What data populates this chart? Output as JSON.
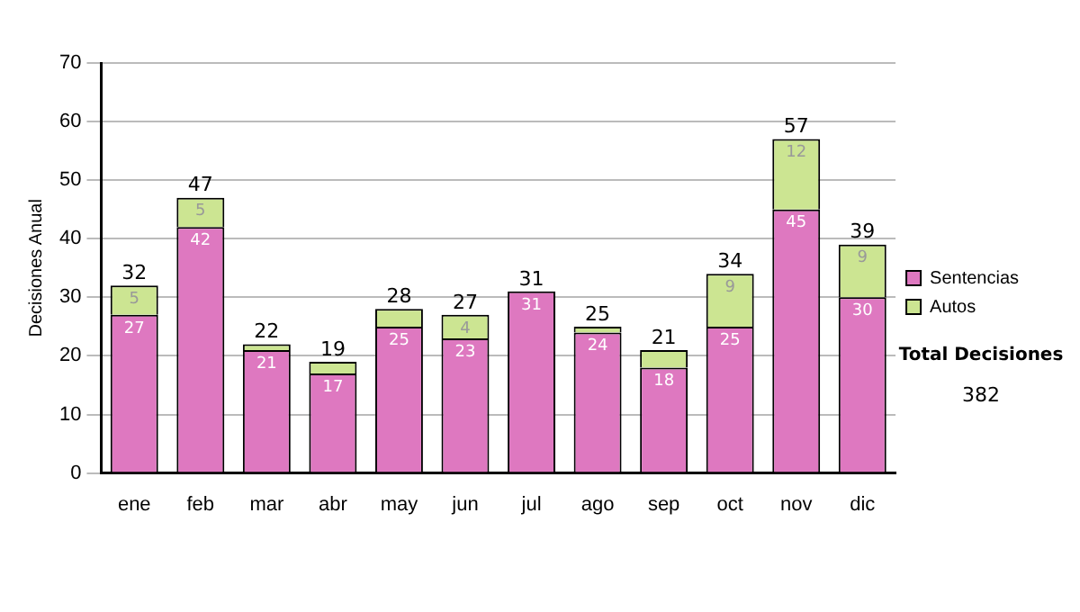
{
  "chart_data": {
    "type": "bar",
    "stacked": true,
    "ylabel": "Decisiones Anual",
    "categories": [
      "ene",
      "feb",
      "mar",
      "abr",
      "may",
      "jun",
      "jul",
      "ago",
      "sep",
      "oct",
      "nov",
      "dic"
    ],
    "series": [
      {
        "name": "Sentencias",
        "color": "#de78c0",
        "values": [
          27,
          42,
          21,
          17,
          25,
          23,
          31,
          24,
          18,
          25,
          45,
          30
        ],
        "value_labels": [
          "27",
          "42",
          "21",
          "17",
          "25",
          "23",
          "31",
          "24",
          "18",
          "25",
          "45",
          "30"
        ]
      },
      {
        "name": "Autos",
        "color": "#cce592",
        "values": [
          5,
          5,
          1,
          2,
          3,
          4,
          0,
          1,
          3,
          9,
          12,
          9
        ],
        "value_labels": [
          "5",
          "5",
          null,
          null,
          null,
          "4",
          null,
          null,
          null,
          "9",
          "12",
          "9"
        ]
      }
    ],
    "totals": [
      "32",
      "47",
      "22",
      "19",
      "28",
      "27",
      "31",
      "25",
      "21",
      "34",
      "57",
      "39"
    ],
    "ylim": [
      0,
      70
    ],
    "yticks": [
      0,
      10,
      20,
      30,
      40,
      50,
      60,
      70
    ],
    "grid": "y",
    "legend": "right",
    "annotations": [
      "Total Decisiones",
      "382"
    ]
  }
}
